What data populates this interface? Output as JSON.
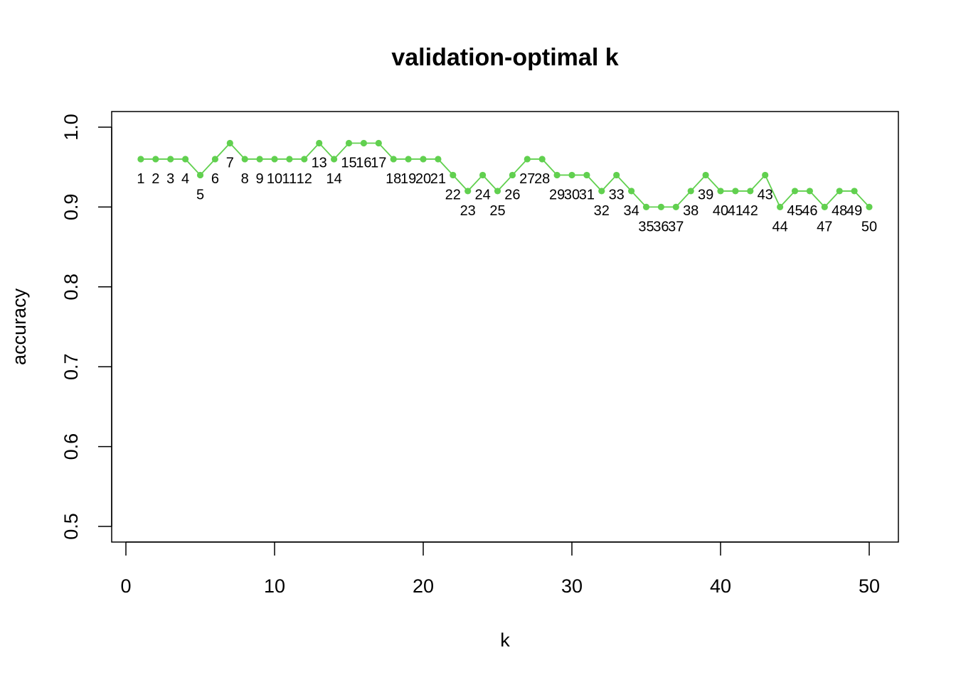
{
  "chart_data": {
    "type": "line",
    "title": "validation-optimal k",
    "xlabel": "k",
    "ylabel": "accuracy",
    "xlim": [
      0,
      50
    ],
    "ylim": [
      0.5,
      1.0
    ],
    "xticks": [
      "0",
      "10",
      "20",
      "30",
      "40",
      "50"
    ],
    "yticks": [
      "0.5",
      "0.6",
      "0.7",
      "0.8",
      "0.9",
      "1.0"
    ],
    "grid": false,
    "line_color": "#61D04F",
    "series": [
      {
        "x": [
          1,
          2,
          3,
          4,
          5,
          6,
          7,
          8,
          9,
          10,
          11,
          12,
          13,
          14,
          15,
          16,
          17,
          18,
          19,
          20,
          21,
          22,
          23,
          24,
          25,
          26,
          27,
          28,
          29,
          30,
          31,
          32,
          33,
          34,
          35,
          36,
          37,
          38,
          39,
          40,
          41,
          42,
          43,
          44,
          45,
          46,
          47,
          48,
          49,
          50
        ],
        "values": [
          0.96,
          0.96,
          0.96,
          0.96,
          0.94,
          0.96,
          0.98,
          0.96,
          0.96,
          0.96,
          0.96,
          0.96,
          0.98,
          0.96,
          0.98,
          0.98,
          0.98,
          0.96,
          0.96,
          0.96,
          0.96,
          0.94,
          0.92,
          0.94,
          0.92,
          0.94,
          0.96,
          0.96,
          0.94,
          0.94,
          0.94,
          0.92,
          0.94,
          0.92,
          0.9,
          0.9,
          0.9,
          0.92,
          0.94,
          0.92,
          0.92,
          0.92,
          0.94,
          0.9,
          0.92,
          0.92,
          0.9,
          0.92,
          0.92,
          0.9
        ],
        "point_labels": [
          "1",
          "2",
          "3",
          "4",
          "5",
          "6",
          "7",
          "8",
          "9",
          "10",
          "11",
          "12",
          "13",
          "14",
          "15",
          "16",
          "17",
          "18",
          "19",
          "20",
          "21",
          "22",
          "23",
          "24",
          "25",
          "26",
          "27",
          "28",
          "29",
          "30",
          "31",
          "32",
          "33",
          "34",
          "35",
          "36",
          "37",
          "38",
          "39",
          "40",
          "41",
          "42",
          "43",
          "44",
          "45",
          "46",
          "47",
          "48",
          "49",
          "50"
        ]
      }
    ]
  }
}
